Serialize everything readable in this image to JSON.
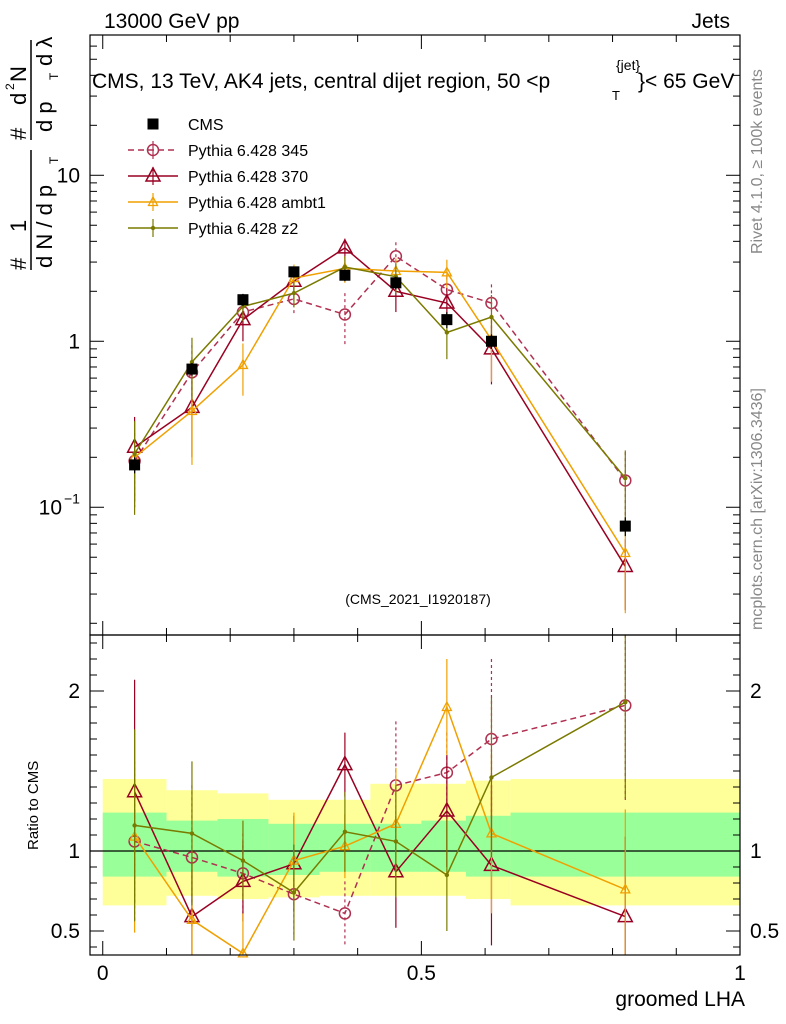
{
  "header": {
    "left": "13000 GeV pp",
    "right": "Jets",
    "plot_title_main": "CMS, 13 TeV, AK4 jets, central dijet region, 50 <p",
    "plot_title_sub": "T",
    "plot_title_sup": "{jet}",
    "plot_title_end": "}< 65 GeV",
    "watermark": "(CMS_2021_I1920187)",
    "side_rivet": "Rivet 4.1.0, ≥ 100k events",
    "side_mcplots": "mcplots.cern.ch [arXiv:1306.3436]"
  },
  "axes": {
    "xlabel": "groomed LHA",
    "ratio_ylabel": "Ratio to CMS",
    "ylabel_parts": [
      "#",
      "1",
      "d N / d p",
      "T",
      "#",
      "d",
      "2",
      "N",
      "d p",
      "T",
      "d λ"
    ]
  },
  "chart_data": {
    "type": "line",
    "x": [
      0.05,
      0.14,
      0.22,
      0.3,
      0.38,
      0.46,
      0.54,
      0.61,
      0.82
    ],
    "xlim": [
      -0.02,
      1.0
    ],
    "xticks": [
      {
        "v": 0,
        "label": "0"
      },
      {
        "v": 0.5,
        "label": "0.5"
      },
      {
        "v": 1,
        "label": "1"
      }
    ],
    "main": {
      "yscale": "log",
      "ylim": [
        0.017,
        70
      ],
      "yticks": [
        {
          "v": 0.1,
          "label": "10",
          "sup": "−1"
        },
        {
          "v": 1,
          "label": "1",
          "sup": ""
        },
        {
          "v": 10,
          "label": "10",
          "sup": ""
        }
      ]
    },
    "ratio": {
      "ylim": [
        0.35,
        2.35
      ],
      "yticks": [
        {
          "v": 0.5,
          "label": "0.5"
        },
        {
          "v": 1,
          "label": "1"
        },
        {
          "v": 2,
          "label": "2"
        }
      ]
    },
    "data": {
      "name": "CMS",
      "color": "#000000",
      "values": [
        0.18,
        0.68,
        1.78,
        2.62,
        2.5,
        2.25,
        1.35,
        1.0,
        0.077
      ],
      "err": [
        0.02,
        0.06,
        0.15,
        0.2,
        0.2,
        0.2,
        0.15,
        0.1,
        0.01
      ]
    },
    "bands": {
      "bins": [
        [
          0.0,
          0.1
        ],
        [
          0.1,
          0.18
        ],
        [
          0.18,
          0.26
        ],
        [
          0.26,
          0.34
        ],
        [
          0.34,
          0.42
        ],
        [
          0.42,
          0.5
        ],
        [
          0.5,
          0.57
        ],
        [
          0.57,
          0.64
        ],
        [
          0.64,
          1.0
        ]
      ],
      "stat_lo": [
        0.84,
        0.87,
        0.84,
        0.85,
        0.87,
        0.87,
        0.87,
        0.84,
        0.84
      ],
      "stat_hi": [
        1.24,
        1.19,
        1.2,
        1.17,
        1.17,
        1.17,
        1.19,
        1.22,
        1.24
      ],
      "tot_lo": [
        0.66,
        0.72,
        0.7,
        0.71,
        0.72,
        0.72,
        0.72,
        0.7,
        0.66
      ],
      "tot_hi": [
        1.45,
        1.38,
        1.36,
        1.32,
        1.32,
        1.42,
        1.42,
        1.44,
        1.45
      ],
      "stat_color": "#99ff99",
      "tot_color": "#ffff99"
    },
    "series": [
      {
        "name": "Pythia 6.428 345",
        "color": "#b03050",
        "dash": "dashed",
        "marker": "circle",
        "values": [
          0.19,
          0.65,
          1.5,
          1.8,
          1.45,
          3.25,
          2.05,
          1.7,
          0.145
        ],
        "err": [
          0.09,
          0.3,
          0.3,
          0.35,
          0.5,
          0.7,
          0.4,
          0.5,
          0.07
        ],
        "ratio": [
          1.06,
          0.96,
          0.86,
          0.73,
          0.61,
          1.41,
          1.49,
          1.7,
          1.91
        ],
        "ratio_err": [
          0.5,
          0.45,
          0.25,
          0.25,
          0.2,
          0.4,
          0.25,
          0.5,
          0.6
        ]
      },
      {
        "name": "Pythia 6.428 370",
        "color": "#990022",
        "dash": "solid",
        "marker": "triangle",
        "values": [
          0.23,
          0.4,
          1.35,
          2.3,
          3.65,
          2.0,
          1.7,
          0.9,
          0.044
        ],
        "err": [
          0.12,
          0.2,
          0.35,
          0.5,
          0.5,
          0.5,
          0.4,
          0.35,
          0.02
        ],
        "ratio": [
          1.37,
          0.59,
          0.81,
          0.92,
          1.54,
          0.87,
          1.25,
          0.91,
          0.59
        ],
        "ratio_err": [
          0.7,
          0.35,
          0.25,
          0.3,
          0.2,
          0.35,
          0.35,
          0.5,
          0.5
        ]
      },
      {
        "name": "Pythia 6.428 ambt1",
        "color": "#f0a000",
        "dash": "solid",
        "marker": "triangle-small",
        "values": [
          0.2,
          0.38,
          0.72,
          2.4,
          2.75,
          2.65,
          2.6,
          1.02,
          0.053
        ],
        "err": [
          0.1,
          0.2,
          0.25,
          0.5,
          0.5,
          0.5,
          0.5,
          0.45,
          0.03
        ],
        "ratio": [
          1.09,
          0.57,
          0.36,
          0.94,
          1.03,
          1.17,
          1.9,
          1.11,
          0.76
        ],
        "ratio_err": [
          0.6,
          0.35,
          0.25,
          0.3,
          0.2,
          0.35,
          0.3,
          0.5,
          0.5
        ]
      },
      {
        "name": "Pythia 6.428 z2",
        "color": "#7a7a00",
        "dash": "solid",
        "marker": "dot",
        "values": [
          0.21,
          0.75,
          1.62,
          1.95,
          2.8,
          2.45,
          1.13,
          1.4,
          0.15
        ],
        "err": [
          0.12,
          0.3,
          0.3,
          0.35,
          0.45,
          0.5,
          0.35,
          0.5,
          0.07
        ],
        "ratio": [
          1.16,
          1.11,
          0.94,
          0.74,
          1.12,
          1.06,
          0.85,
          1.46,
          1.93
        ],
        "ratio_err": [
          0.6,
          0.45,
          0.25,
          0.3,
          0.25,
          0.35,
          0.35,
          0.5,
          0.6
        ]
      }
    ]
  }
}
